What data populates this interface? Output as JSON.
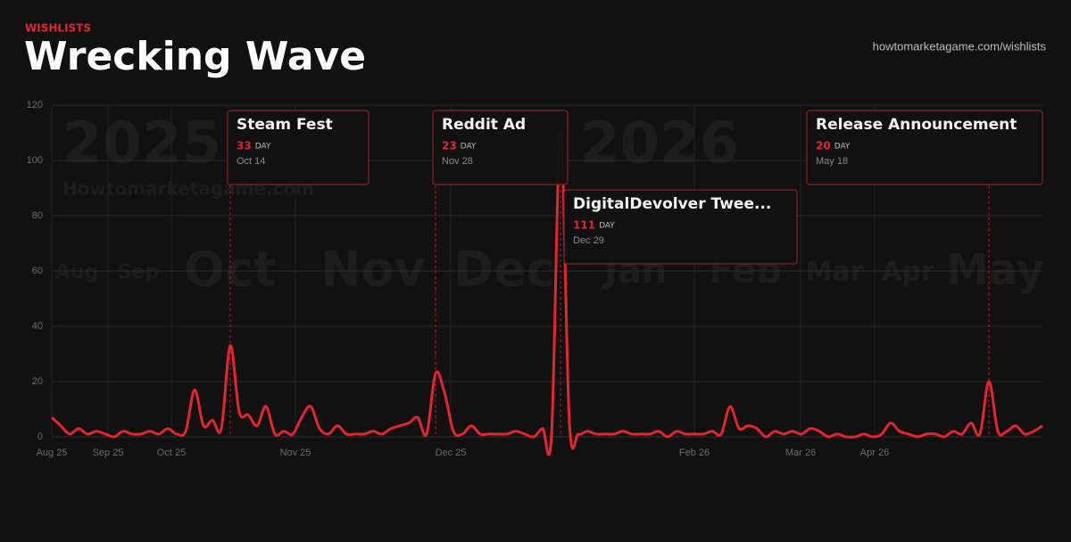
{
  "header": {
    "eyebrow": "WISHLISTS",
    "link": "howtomarketagame.com/wishlists"
  },
  "watermark": {
    "years": [
      "2025",
      "2026"
    ],
    "site": "Howtomarketagame.com",
    "months": [
      "Aug",
      "Sep",
      "Oct",
      "Nov",
      "Dec",
      "Jan",
      "Feb",
      "Mar",
      "Apr",
      "May"
    ]
  },
  "chart_data": {
    "type": "line",
    "title": "Wrecking Wave",
    "series": [
      {
        "name": "Wishlists",
        "color": "#e3262d",
        "values": [
          7,
          4,
          1,
          3,
          1,
          2,
          1,
          0,
          2,
          1,
          1,
          2,
          1,
          3,
          1,
          2,
          17,
          4,
          6,
          3,
          33,
          9,
          8,
          4,
          11,
          1,
          2,
          1,
          7,
          11,
          3,
          1,
          4,
          1,
          1,
          1,
          2,
          1,
          3,
          4,
          5,
          7,
          1,
          23,
          16,
          2,
          1,
          4,
          1,
          1,
          1,
          1,
          2,
          1,
          0,
          3,
          1,
          111,
          5,
          1,
          2,
          1,
          1,
          1,
          2,
          1,
          1,
          1,
          2,
          0,
          2,
          1,
          1,
          1,
          2,
          1,
          11,
          3,
          4,
          3,
          0,
          2,
          1,
          2,
          1,
          3,
          2,
          0,
          1,
          0,
          0,
          1,
          0,
          1,
          5,
          2,
          1,
          0,
          1,
          1,
          0,
          2,
          1,
          5,
          1,
          20,
          2,
          2,
          4,
          1,
          2,
          4
        ]
      }
    ],
    "xlim": [
      0,
      111
    ],
    "xticks": [
      {
        "value": 0,
        "label": "Aug 25"
      },
      {
        "value": 6.3,
        "label": "Sep 25"
      },
      {
        "value": 13.4,
        "label": "Oct 25"
      },
      {
        "value": 27.3,
        "label": "Nov 25"
      },
      {
        "value": 44.7,
        "label": "Dec 25"
      },
      {
        "value": 72,
        "label": "Feb 26"
      },
      {
        "value": 83.9,
        "label": "Mar 26"
      },
      {
        "value": 92.2,
        "label": "Apr 26"
      }
    ],
    "ylim": [
      0,
      120
    ],
    "yticks": [
      0,
      20,
      40,
      60,
      80,
      100,
      120
    ],
    "grid": true,
    "annotations": [
      {
        "label": "Steam Fest",
        "value": 33,
        "unit": "DAY",
        "date": "Oct 14",
        "x": 20
      },
      {
        "label": "Reddit Ad",
        "value": 23,
        "unit": "DAY",
        "date": "Nov 28",
        "x": 43
      },
      {
        "label": "DigitalDevolver Twee...",
        "value": 111,
        "unit": "DAY",
        "date": "Dec 29",
        "x": 57
      },
      {
        "label": "Release Announcement",
        "value": 20,
        "unit": "DAY",
        "date": "May 18",
        "x": 105
      }
    ]
  }
}
